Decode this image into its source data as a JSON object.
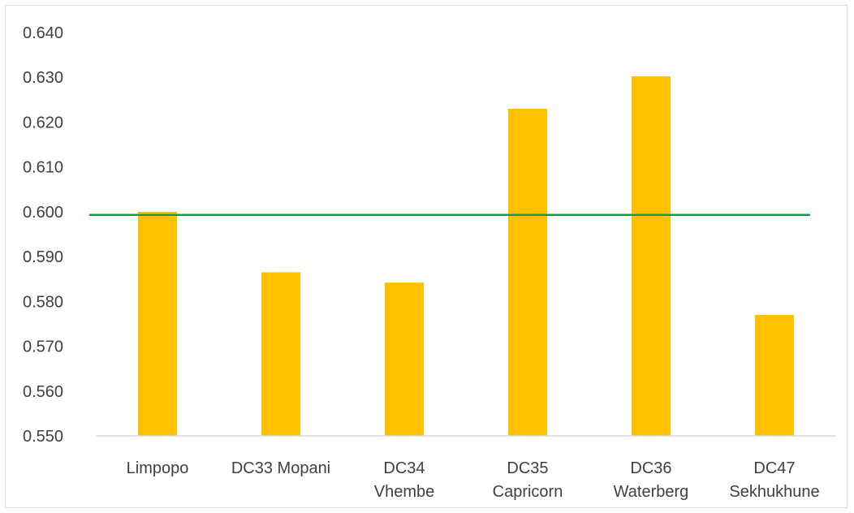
{
  "chart_data": {
    "type": "bar",
    "title": "",
    "xlabel": "",
    "ylabel": "",
    "categories": [
      [
        "Limpopo"
      ],
      [
        "DC33 Mopani"
      ],
      [
        "DC34",
        "Vhembe"
      ],
      [
        "DC35",
        "Capricorn"
      ],
      [
        "DC36",
        "Waterberg"
      ],
      [
        "DC47",
        "Sekhukhune"
      ]
    ],
    "values": [
      0.6,
      0.5865,
      0.5842,
      0.623,
      0.6302,
      0.577
    ],
    "ylim": [
      0.55,
      0.64
    ],
    "yticks": [
      "0.550",
      "0.560",
      "0.570",
      "0.580",
      "0.590",
      "0.600",
      "0.610",
      "0.620",
      "0.630",
      "0.640"
    ],
    "reference_line": {
      "value": 0.5993,
      "color": "#1a9c3e",
      "glow": "#7be38f"
    },
    "bar_color": "#ffc000",
    "grid": false,
    "legend": "none"
  }
}
